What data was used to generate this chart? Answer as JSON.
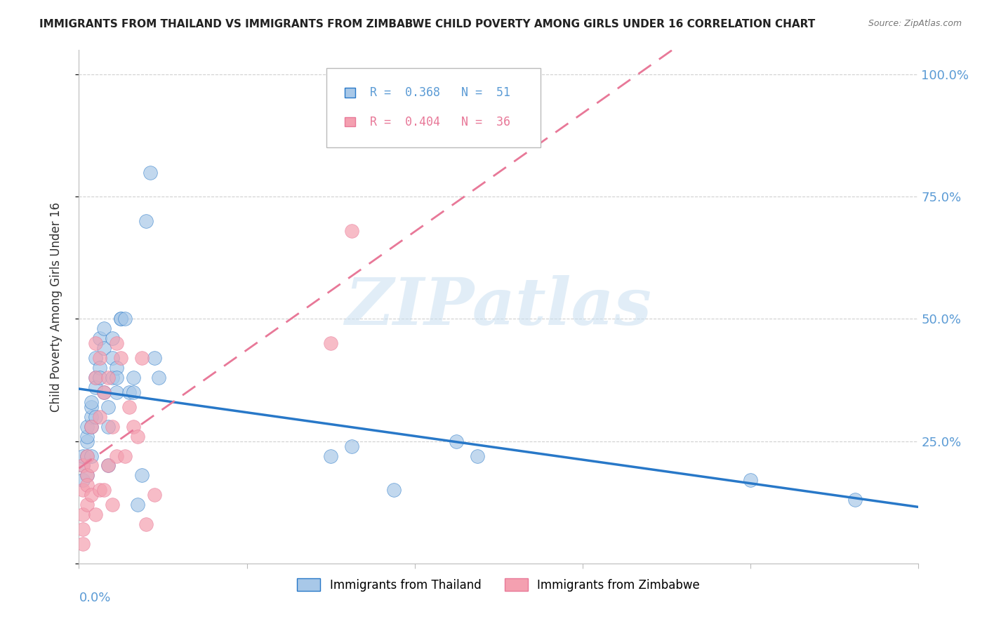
{
  "title": "IMMIGRANTS FROM THAILAND VS IMMIGRANTS FROM ZIMBABWE CHILD POVERTY AMONG GIRLS UNDER 16 CORRELATION CHART",
  "source": "Source: ZipAtlas.com",
  "ylabel": "Child Poverty Among Girls Under 16",
  "legend_label_thailand": "Immigrants from Thailand",
  "legend_label_zimbabwe": "Immigrants from Zimbabwe",
  "legend_R_thailand": "0.368",
  "legend_N_thailand": "51",
  "legend_R_zimbabwe": "0.404",
  "legend_N_zimbabwe": "36",
  "color_thailand": "#a8c8e8",
  "color_zimbabwe": "#f4a0b0",
  "color_title": "#222222",
  "color_right_axis": "#5b9bd5",
  "color_left_axis": "#5b9bd5",
  "watermark": "ZIPatlas",
  "thailand_x": [
    0.001,
    0.001,
    0.001,
    0.002,
    0.002,
    0.002,
    0.002,
    0.002,
    0.003,
    0.003,
    0.003,
    0.003,
    0.003,
    0.004,
    0.004,
    0.004,
    0.004,
    0.005,
    0.005,
    0.005,
    0.006,
    0.006,
    0.006,
    0.007,
    0.007,
    0.007,
    0.008,
    0.008,
    0.008,
    0.009,
    0.009,
    0.009,
    0.01,
    0.01,
    0.011,
    0.012,
    0.013,
    0.013,
    0.014,
    0.015,
    0.016,
    0.017,
    0.018,
    0.019,
    0.06,
    0.065,
    0.075,
    0.09,
    0.095,
    0.16,
    0.185
  ],
  "thailand_y": [
    0.2,
    0.17,
    0.22,
    0.25,
    0.22,
    0.26,
    0.18,
    0.28,
    0.3,
    0.32,
    0.28,
    0.33,
    0.22,
    0.38,
    0.42,
    0.36,
    0.3,
    0.46,
    0.4,
    0.38,
    0.48,
    0.44,
    0.35,
    0.2,
    0.28,
    0.32,
    0.38,
    0.42,
    0.46,
    0.4,
    0.35,
    0.38,
    0.5,
    0.5,
    0.5,
    0.35,
    0.35,
    0.38,
    0.12,
    0.18,
    0.7,
    0.8,
    0.42,
    0.38,
    0.22,
    0.24,
    0.15,
    0.25,
    0.22,
    0.17,
    0.13
  ],
  "zimbabwe_x": [
    0.001,
    0.001,
    0.001,
    0.001,
    0.001,
    0.002,
    0.002,
    0.002,
    0.002,
    0.003,
    0.003,
    0.003,
    0.004,
    0.004,
    0.004,
    0.005,
    0.005,
    0.005,
    0.006,
    0.006,
    0.007,
    0.007,
    0.008,
    0.008,
    0.009,
    0.009,
    0.01,
    0.011,
    0.012,
    0.013,
    0.014,
    0.015,
    0.016,
    0.018,
    0.06,
    0.065
  ],
  "zimbabwe_y": [
    0.2,
    0.15,
    0.1,
    0.07,
    0.04,
    0.18,
    0.12,
    0.22,
    0.16,
    0.28,
    0.2,
    0.14,
    0.45,
    0.38,
    0.1,
    0.3,
    0.42,
    0.15,
    0.35,
    0.15,
    0.2,
    0.38,
    0.28,
    0.12,
    0.22,
    0.45,
    0.42,
    0.22,
    0.32,
    0.28,
    0.26,
    0.42,
    0.08,
    0.14,
    0.45,
    0.68
  ],
  "xlim": [
    0.0,
    0.2
  ],
  "ylim": [
    0.0,
    1.05
  ],
  "yticks": [
    0.0,
    0.25,
    0.5,
    0.75,
    1.0
  ],
  "ytick_labels": [
    "",
    "25.0%",
    "50.0%",
    "75.0%",
    "100.0%"
  ],
  "xticks": [
    0.0,
    0.04,
    0.08,
    0.12,
    0.16,
    0.2
  ],
  "thailand_line_color": "#2878c8",
  "zimbabwe_line_color": "#e87898",
  "background_color": "#ffffff",
  "grid_color": "#d0d0d0",
  "spine_color": "#bbbbbb"
}
